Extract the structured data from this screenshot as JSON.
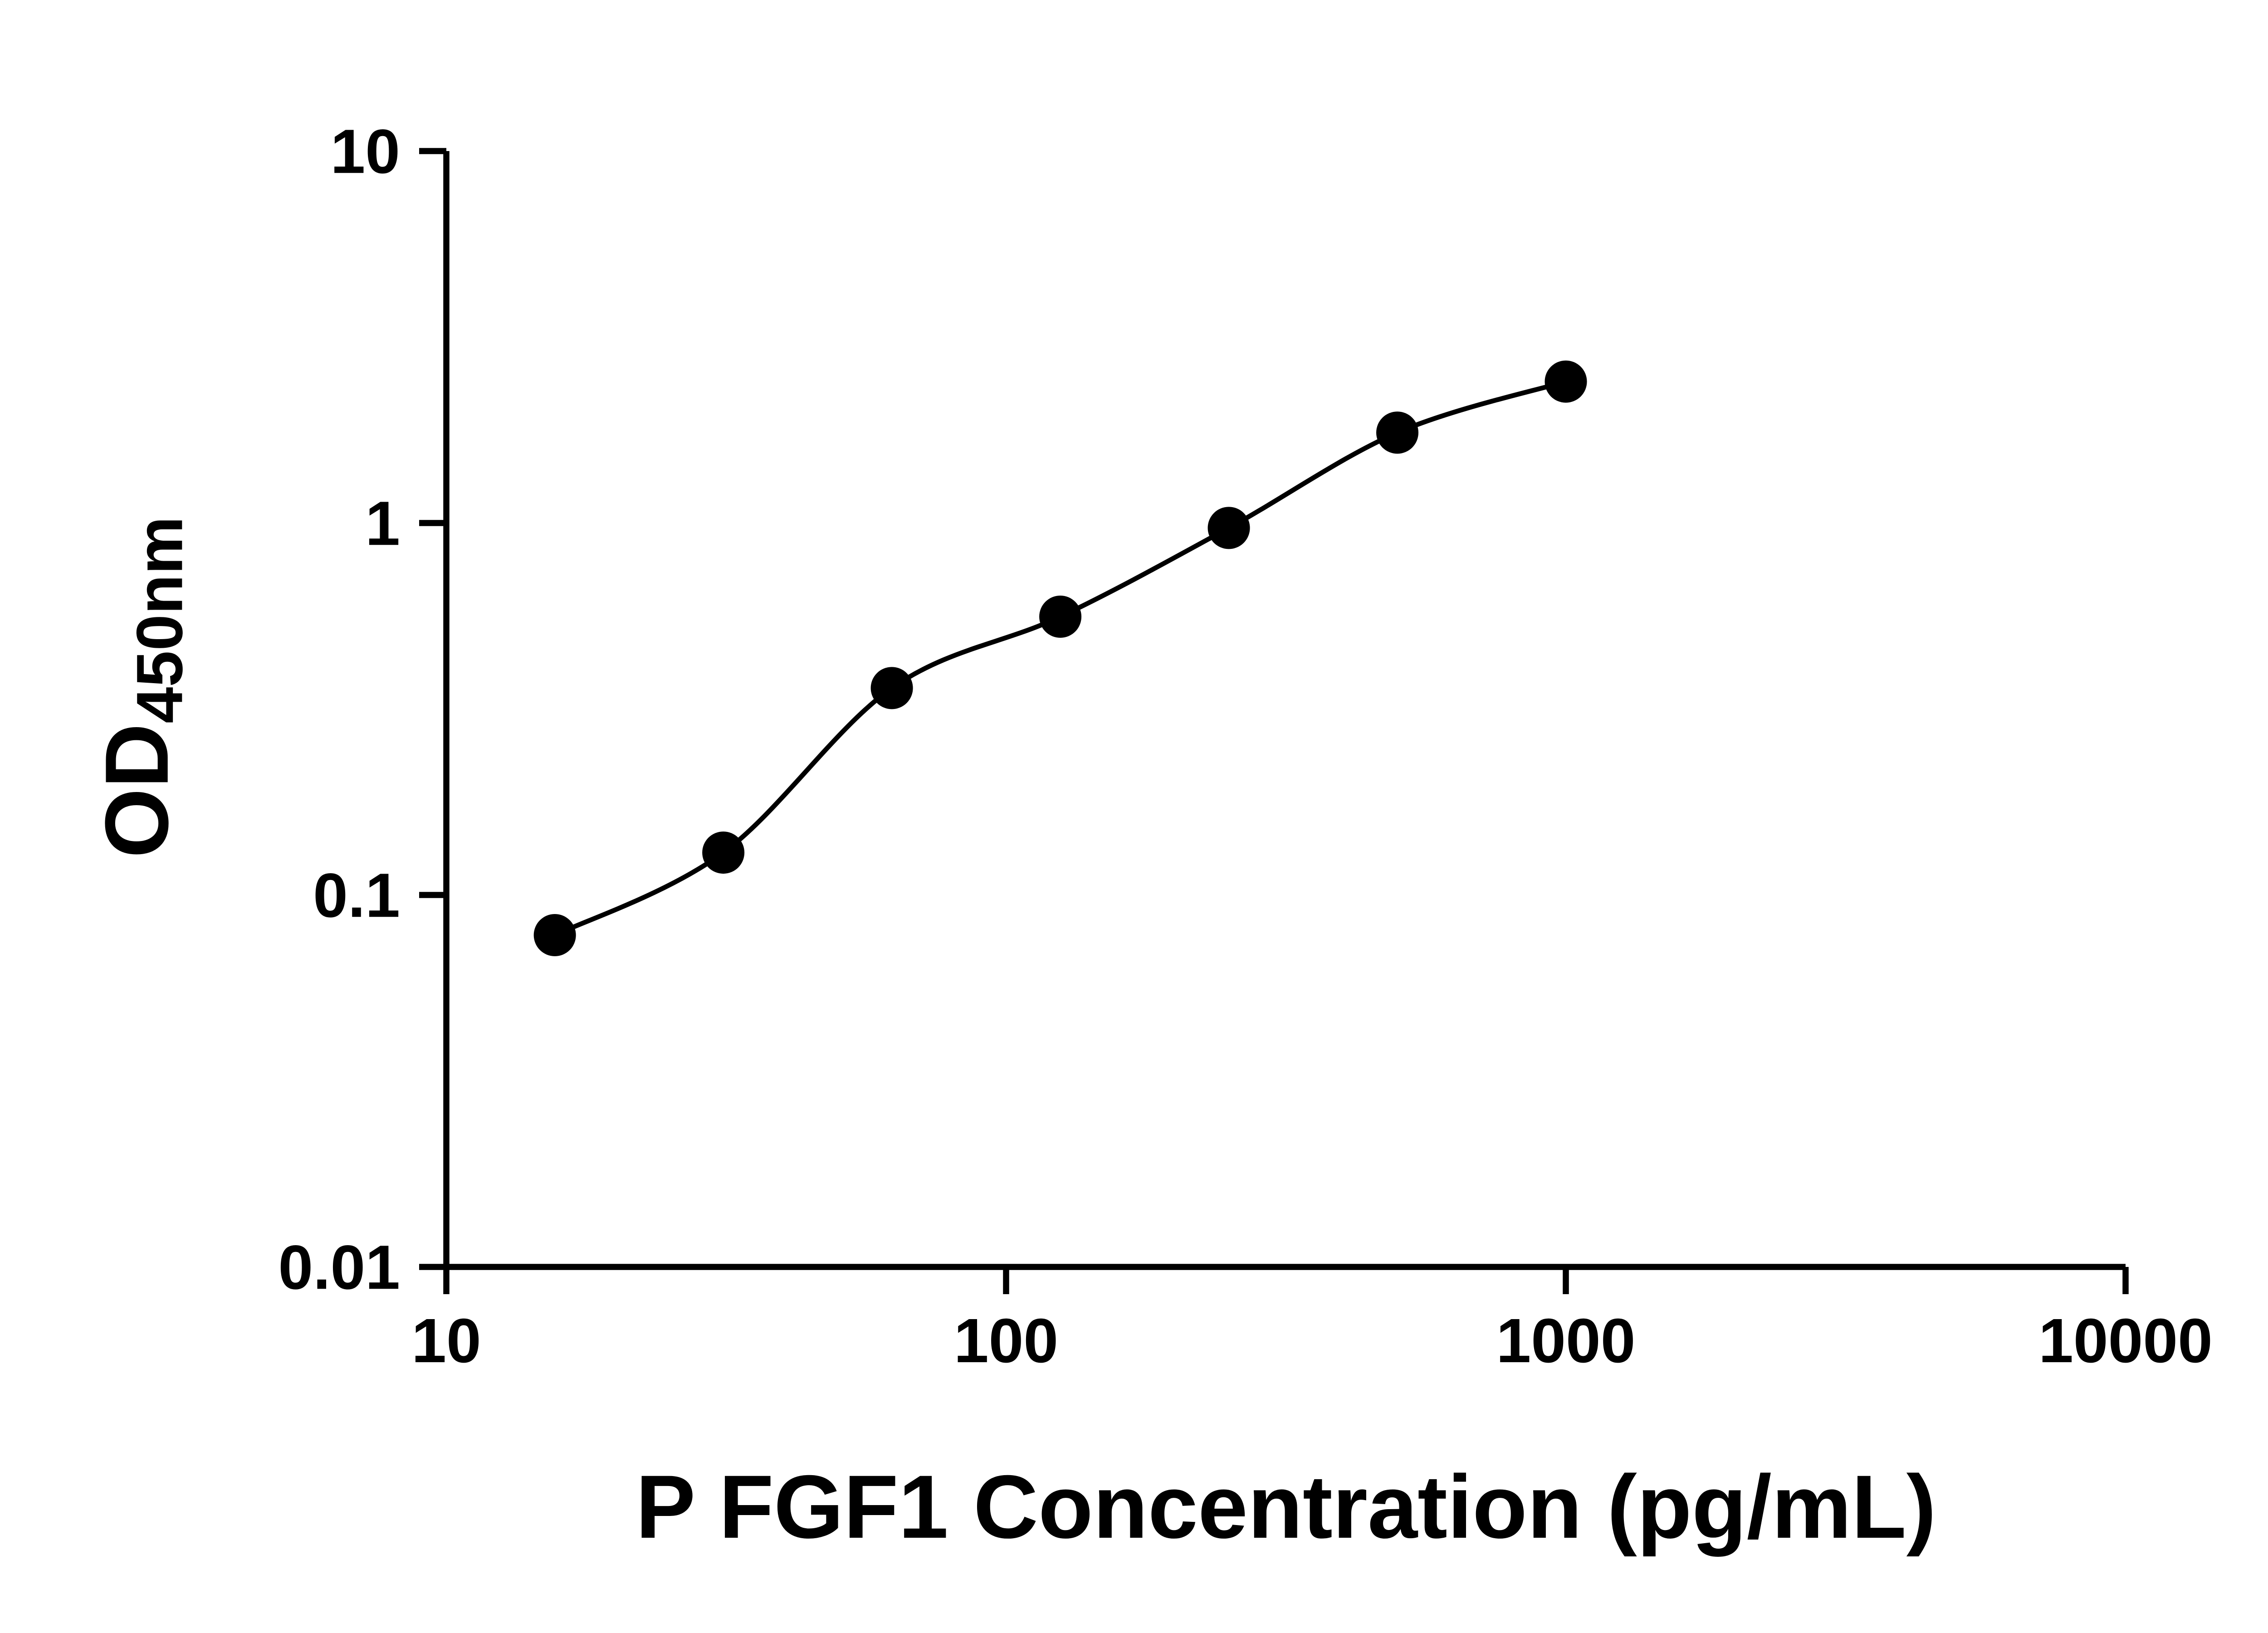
{
  "chart_data": {
    "type": "scatter",
    "title": "",
    "xlabel": "P FGF1 Concentration (pg/mL)",
    "ylabel": "OD450nm",
    "ylabel_parts": {
      "main": "OD",
      "sub": "450nm"
    },
    "x_scale": "log",
    "y_scale": "log",
    "xlim": [
      10,
      10000
    ],
    "ylim": [
      0.01,
      10
    ],
    "x_ticks": [
      10,
      100,
      1000,
      10000
    ],
    "x_tick_labels": [
      "10",
      "100",
      "1000",
      "10000"
    ],
    "y_ticks": [
      0.01,
      0.1,
      1,
      10
    ],
    "y_tick_labels": [
      "0.01",
      "0.1",
      "1",
      "10"
    ],
    "grid": false,
    "legend": false,
    "series": [
      {
        "marker": "filled-circle",
        "fit_line": true,
        "x": [
          15.625,
          31.25,
          62.5,
          125,
          250,
          500,
          1000
        ],
        "y": [
          0.078,
          0.13,
          0.36,
          0.56,
          0.97,
          1.75,
          2.4
        ]
      }
    ],
    "colors": {
      "background": "#ffffff",
      "axis": "#000000",
      "marker": "#000000",
      "curve": "#000000",
      "text": "#000000"
    }
  }
}
